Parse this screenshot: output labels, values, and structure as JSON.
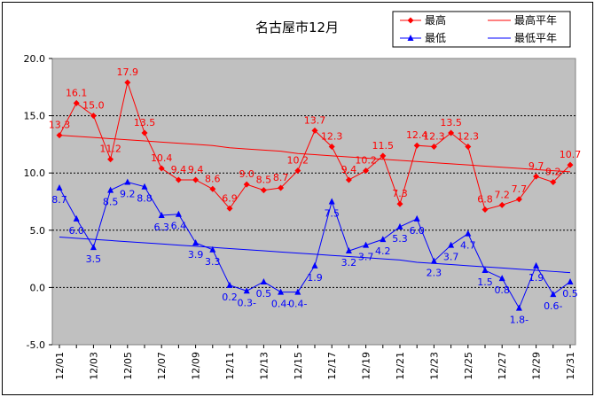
{
  "chart_data": {
    "type": "line",
    "title": "名古屋市12月",
    "xlabel": "",
    "ylabel": "",
    "ylim": [
      -5.0,
      20.0
    ],
    "yticks": [
      "20.0",
      "15.0",
      "10.0",
      "5.0",
      "0.0",
      "-5.0"
    ],
    "ytick_values": [
      20,
      15,
      10,
      5,
      0,
      -5
    ],
    "categories": [
      "12/01",
      "12/02",
      "12/03",
      "12/04",
      "12/05",
      "12/06",
      "12/07",
      "12/08",
      "12/09",
      "12/10",
      "12/11",
      "12/12",
      "12/13",
      "12/14",
      "12/15",
      "12/16",
      "12/17",
      "12/18",
      "12/19",
      "12/20",
      "12/21",
      "12/22",
      "12/23",
      "12/24",
      "12/25",
      "12/26",
      "12/27",
      "12/28",
      "12/29",
      "12/30",
      "12/31"
    ],
    "xtick_labels": [
      "12/01",
      "12/03",
      "12/05",
      "12/07",
      "12/09",
      "12/11",
      "12/13",
      "12/15",
      "12/17",
      "12/19",
      "12/21",
      "12/23",
      "12/25",
      "12/27",
      "12/29",
      "12/31"
    ],
    "grid": true,
    "legend_position": "top-right",
    "series": [
      {
        "name": "最高",
        "color": "#ff0000",
        "marker": "diamond",
        "values": [
          13.3,
          16.1,
          15.0,
          11.2,
          17.9,
          13.5,
          10.4,
          9.4,
          9.4,
          8.6,
          6.9,
          9.0,
          8.5,
          8.7,
          10.2,
          13.7,
          12.3,
          9.4,
          10.2,
          11.5,
          7.3,
          12.4,
          12.3,
          13.5,
          12.3,
          6.8,
          7.2,
          7.7,
          9.7,
          9.2,
          10.7
        ],
        "labels": [
          "13.3",
          "16.1",
          "15.0",
          "11.2",
          "17.9",
          "13.5",
          "10.4",
          "9.4",
          "9.4",
          "8.6",
          "6.9",
          "9.0",
          "8.5",
          "8.7",
          "10.2",
          "13.7",
          "12.3",
          "9.4",
          "10.2",
          "11.5",
          "7.3",
          "12.4",
          "12.3",
          "13.5",
          "12.3",
          "6.8",
          "7.2",
          "7.7",
          "9.7",
          "9.2",
          "10.7"
        ]
      },
      {
        "name": "最低",
        "color": "#0000ff",
        "marker": "triangle",
        "values": [
          8.7,
          6.0,
          3.5,
          8.5,
          9.2,
          8.8,
          6.3,
          6.4,
          3.9,
          3.3,
          0.2,
          -0.3,
          0.5,
          -0.4,
          -0.4,
          1.9,
          7.5,
          3.2,
          3.7,
          4.2,
          5.3,
          6.0,
          2.3,
          3.7,
          4.7,
          1.5,
          0.8,
          -1.8,
          1.9,
          -0.6,
          0.5
        ],
        "labels": [
          "8.7",
          "6.0",
          "3.5",
          "8.5",
          "9.2",
          "8.8",
          "6.3",
          "6.4",
          "3.9",
          "3.3",
          "0.2",
          "0.3-",
          "0.5",
          "0.4-",
          "0.4-",
          "1.9",
          "7.5",
          "3.2",
          "3.7",
          "4.2",
          "5.3",
          "6.0",
          "2.3",
          "3.7",
          "4.7",
          "1.5",
          "0.8",
          "1.8-",
          "1.9",
          "0.6-",
          "0.5"
        ]
      },
      {
        "name": "最高平年",
        "color": "#ff0000",
        "marker": "none",
        "values": [
          13.3,
          13.2,
          13.1,
          13.0,
          12.9,
          12.8,
          12.7,
          12.6,
          12.5,
          12.4,
          12.2,
          12.1,
          12.0,
          11.9,
          11.7,
          11.6,
          11.5,
          11.4,
          11.3,
          11.2,
          11.1,
          11.0,
          10.9,
          10.8,
          10.7,
          10.6,
          10.5,
          10.4,
          10.3,
          10.2,
          10.1
        ]
      },
      {
        "name": "最低平年",
        "color": "#0000ff",
        "marker": "none",
        "values": [
          4.4,
          4.3,
          4.2,
          4.1,
          4.0,
          3.9,
          3.8,
          3.7,
          3.6,
          3.5,
          3.4,
          3.3,
          3.2,
          3.1,
          3.0,
          2.9,
          2.8,
          2.7,
          2.6,
          2.5,
          2.4,
          2.2,
          2.1,
          2.0,
          1.9,
          1.8,
          1.7,
          1.6,
          1.5,
          1.4,
          1.3
        ]
      }
    ]
  }
}
